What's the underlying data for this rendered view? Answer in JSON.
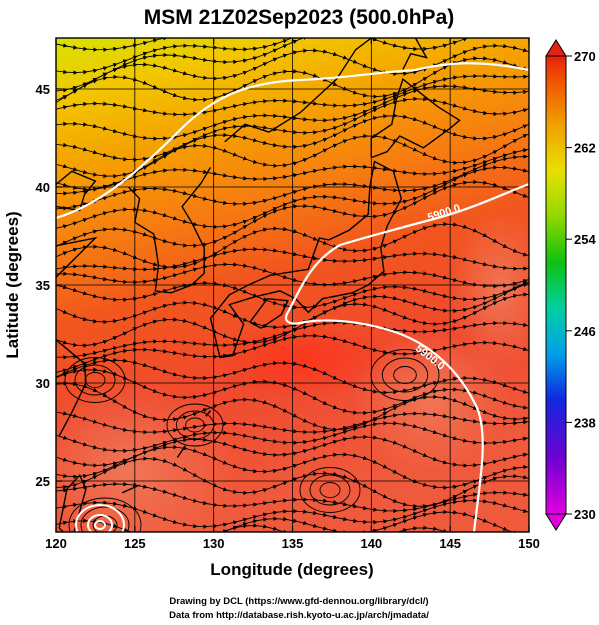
{
  "title": "MSM 21Z02Sep2023 (500.0hPa)",
  "xlabel": "Longitude (degrees)",
  "ylabel": "Latitude  (degrees)",
  "credits": [
    "Drawing by DCL (https://www.gfd-dennou.org/library/dcl/)",
    "Data from http://database.rish.kyoto-u.ac.jp/arch/jmadata/"
  ],
  "map": {
    "lon_range": [
      120,
      150
    ],
    "lat_range": [
      22.4,
      47.6
    ],
    "lon_ticks": [
      120,
      125,
      130,
      135,
      140,
      145,
      150
    ],
    "lat_ticks": [
      25,
      30,
      35,
      40,
      45
    ],
    "lon_tick_labels": [
      "120",
      "125",
      "130",
      "135",
      "140",
      "145",
      "150"
    ],
    "lat_tick_labels": [
      "25",
      "30",
      "35",
      "40",
      "45"
    ],
    "grid": true,
    "field": "temperature (color) + wind streamlines",
    "contours": [
      {
        "label": "5900.0"
      },
      {
        "label": "5900.0"
      }
    ]
  },
  "colorbar": {
    "min": 230,
    "max": 270,
    "tick_values": [
      230,
      238,
      246,
      254,
      262,
      270
    ],
    "tick_labels": [
      "230",
      "238",
      "246",
      "254",
      "262",
      "270"
    ],
    "colors": [
      "#e800e8",
      "#7a00d0",
      "#1020e0",
      "#00a8e8",
      "#00d0a0",
      "#10c010",
      "#80d800",
      "#d8e000",
      "#f0b000",
      "#f06000",
      "#e82010"
    ]
  },
  "colors": {
    "land_outline": "#000000",
    "contour": "#ffffff",
    "streamline": "#000000"
  }
}
